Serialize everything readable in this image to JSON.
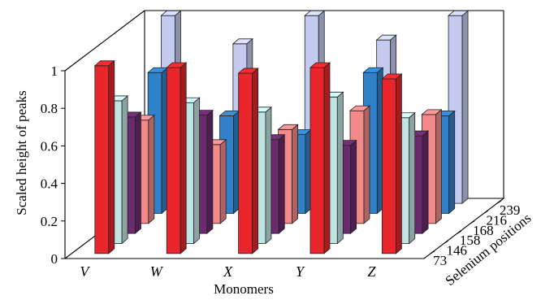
{
  "chart_data": {
    "type": "bar",
    "subtype": "3d-grouped",
    "title": "",
    "xlabel": "Monomers",
    "ylabel": "Scaled height of peaks",
    "zlabel": "Selenium positions",
    "ylim": [
      0,
      1
    ],
    "yticks": [
      "0",
      "0.2",
      "0.4",
      "0.6",
      "0.8",
      "1"
    ],
    "categories": [
      "V",
      "W",
      "X",
      "Y",
      "Z"
    ],
    "series": [
      {
        "name": "73",
        "color": "#e8262b",
        "values": [
          1.0,
          0.99,
          0.96,
          0.99,
          0.93
        ]
      },
      {
        "name": "146",
        "color": "#bfe4e1",
        "values": [
          0.76,
          0.75,
          0.7,
          0.78,
          0.67
        ]
      },
      {
        "name": "158",
        "color": "#6b2a6e",
        "values": [
          0.62,
          0.63,
          0.5,
          0.47,
          0.52
        ]
      },
      {
        "name": "168",
        "color": "#f4898a",
        "values": [
          0.55,
          0.42,
          0.5,
          0.6,
          0.58
        ]
      },
      {
        "name": "216",
        "color": "#2f82c9",
        "values": [
          0.75,
          0.52,
          0.42,
          0.75,
          0.52
        ]
      },
      {
        "name": "239",
        "color": "#c4cbee",
        "values": [
          1.0,
          0.85,
          1.0,
          0.87,
          1.0
        ]
      }
    ],
    "grid": false,
    "legend": "none"
  }
}
